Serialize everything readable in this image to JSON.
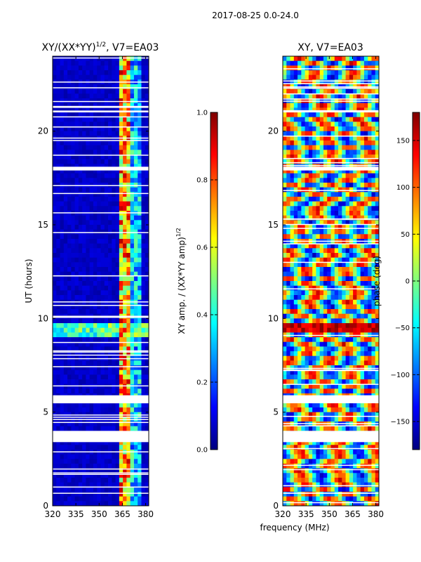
{
  "figure": {
    "suptitle": "2017-08-25 0.0-24.0",
    "shared_xlabel": "frequency (MHz)"
  },
  "colors": {
    "jet": [
      "#00007f",
      "#0000ff",
      "#007fff",
      "#00ffff",
      "#7fff7f",
      "#ffff00",
      "#ff7f00",
      "#ff0000",
      "#7f0000"
    ]
  },
  "chart_data": [
    {
      "type": "heatmap",
      "title": "XY/(XX*YY)",
      "title_exp": "1/2",
      "title_suffix": ", V7=EA03",
      "ylabel": "UT (hours)",
      "xlabel": "",
      "xlim": [
        320,
        382
      ],
      "ylim": [
        0,
        24
      ],
      "xticks": [
        320,
        335,
        350,
        365,
        380
      ],
      "yticks": [
        0,
        5,
        10,
        15,
        20
      ],
      "data_gaps_ut": [
        [
          3.4,
          4.0
        ],
        [
          5.5,
          5.9
        ],
        [
          17.9,
          18.1
        ],
        [
          21.0,
          21.1
        ]
      ],
      "bright_band_mhz": [
        362,
        370
      ],
      "colorbar": {
        "label": "XY amp. / (XX*YY amp)",
        "label_exp": "1/2",
        "range": [
          0.0,
          1.0
        ],
        "ticks": [
          "0.0",
          "0.2",
          "0.4",
          "0.6",
          "0.8",
          "1.0"
        ]
      }
    },
    {
      "type": "heatmap",
      "title": "XY, V7=EA03",
      "ylabel": "",
      "xlabel": "frequency (MHz)",
      "xlim": [
        320,
        382
      ],
      "ylim": [
        0,
        24
      ],
      "xticks": [
        320,
        335,
        350,
        365,
        380
      ],
      "yticks": [
        0,
        5,
        10,
        15,
        20
      ],
      "data_gaps_ut": [
        [
          3.4,
          4.0
        ],
        [
          5.5,
          5.9
        ],
        [
          17.9,
          18.1
        ],
        [
          21.0,
          21.1
        ]
      ],
      "colorbar": {
        "label": "phase (deg)",
        "range": [
          -180,
          180
        ],
        "ticks": [
          "-150",
          "-100",
          "-50",
          "0",
          "50",
          "100",
          "150"
        ]
      }
    }
  ]
}
